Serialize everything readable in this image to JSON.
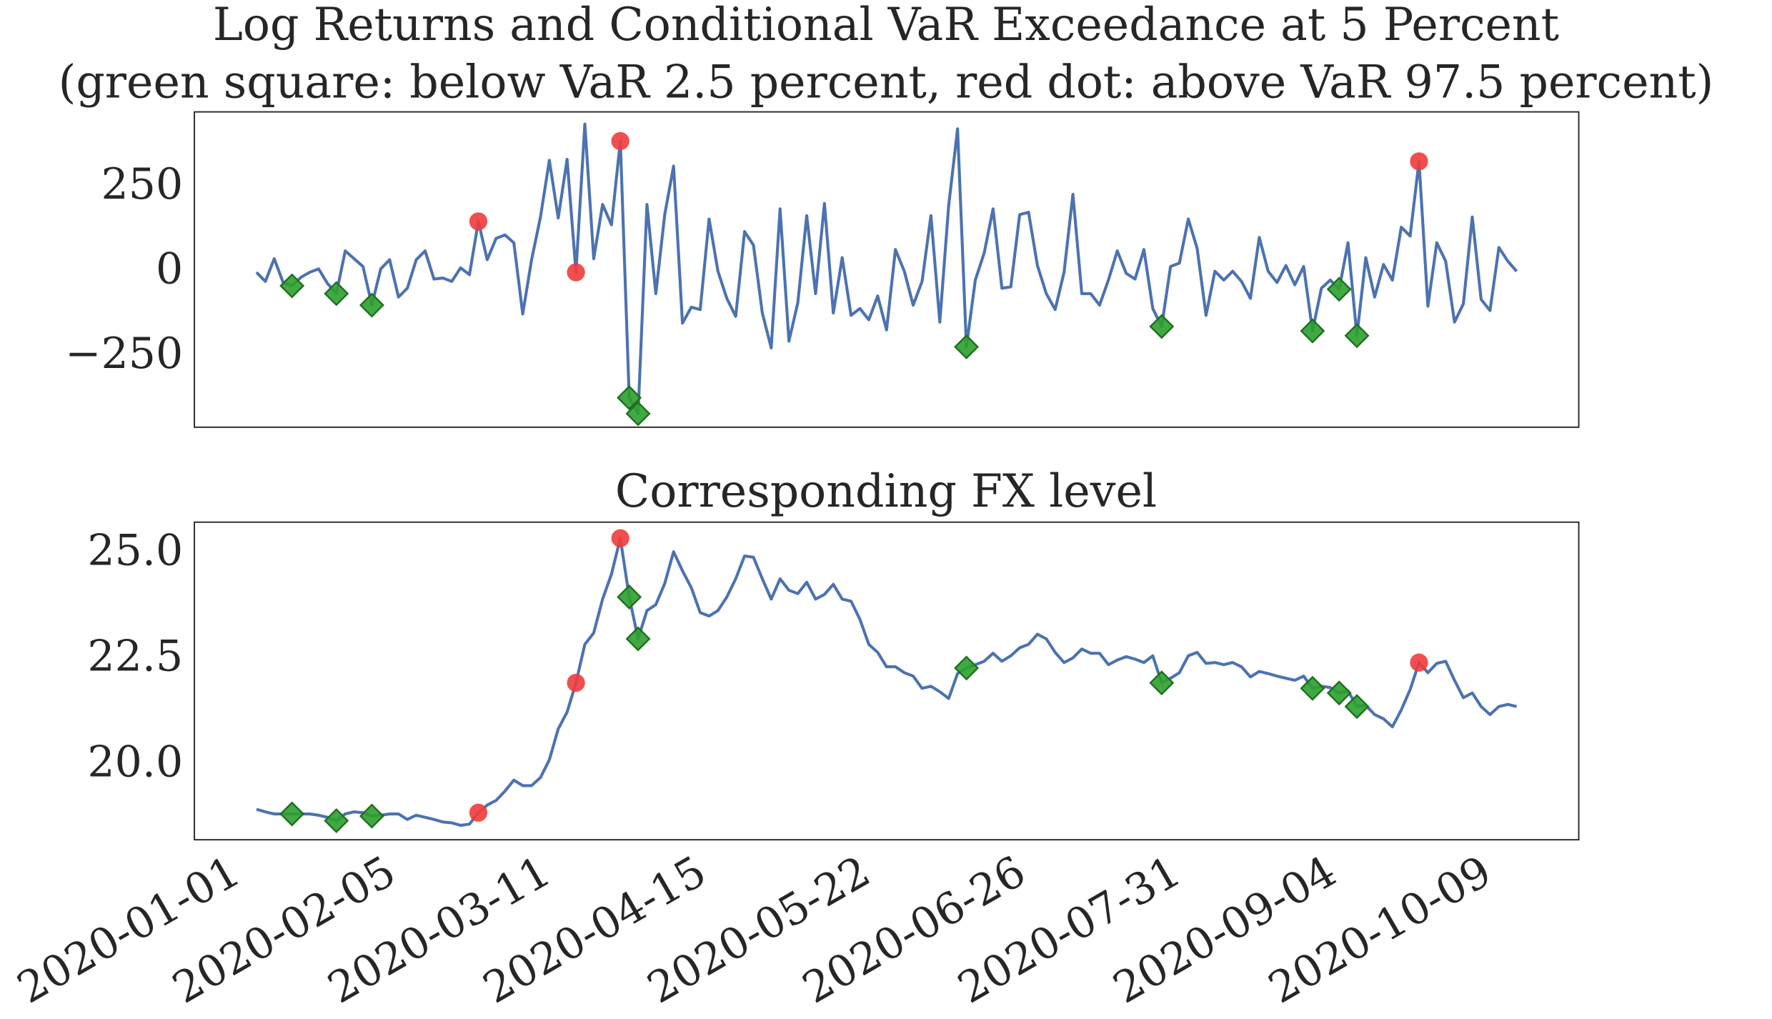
{
  "chart_data": [
    {
      "type": "line",
      "title": "Log Returns and Conditional VaR Exceedance at 5 Percent",
      "subtitle": "(green square: below VaR 2.5 percent, red dot: above VaR 97.5 percent)",
      "xlim": [
        "2019-12-21",
        "2020-10-28"
      ],
      "ylim": [
        -457,
        473
      ],
      "yticks": [
        {
          "value": -250,
          "label": "−250"
        },
        0,
        250
      ],
      "x": [
        "2020-01-04",
        "2020-01-06",
        "2020-01-08",
        "2020-01-10",
        "2020-01-12",
        "2020-01-14",
        "2020-01-16",
        "2020-01-18",
        "2020-01-20",
        "2020-01-22",
        "2020-01-24",
        "2020-01-26",
        "2020-01-28",
        "2020-01-30",
        "2020-02-01",
        "2020-02-03",
        "2020-02-05",
        "2020-02-07",
        "2020-02-09",
        "2020-02-11",
        "2020-02-13",
        "2020-02-15",
        "2020-02-17",
        "2020-02-19",
        "2020-02-21",
        "2020-02-23",
        "2020-02-25",
        "2020-02-27",
        "2020-02-29",
        "2020-03-02",
        "2020-03-04",
        "2020-03-06",
        "2020-03-08",
        "2020-03-10",
        "2020-03-12",
        "2020-03-14",
        "2020-03-16",
        "2020-03-18",
        "2020-03-20",
        "2020-03-22",
        "2020-03-24",
        "2020-03-26",
        "2020-03-28",
        "2020-03-30",
        "2020-04-01",
        "2020-04-03",
        "2020-04-05",
        "2020-04-07",
        "2020-04-09",
        "2020-04-11",
        "2020-04-13",
        "2020-04-15",
        "2020-04-17",
        "2020-04-19",
        "2020-04-21",
        "2020-04-23",
        "2020-04-25",
        "2020-04-27",
        "2020-04-29",
        "2020-05-01",
        "2020-05-03",
        "2020-05-05",
        "2020-05-07",
        "2020-05-09",
        "2020-05-11",
        "2020-05-13",
        "2020-05-15",
        "2020-05-17",
        "2020-05-19",
        "2020-05-21",
        "2020-05-23",
        "2020-05-25",
        "2020-05-27",
        "2020-05-29",
        "2020-05-31",
        "2020-06-02",
        "2020-06-04",
        "2020-06-06",
        "2020-06-08",
        "2020-06-10",
        "2020-06-12",
        "2020-06-14",
        "2020-06-16",
        "2020-06-18",
        "2020-06-20",
        "2020-06-22",
        "2020-06-24",
        "2020-06-26",
        "2020-06-28",
        "2020-06-30",
        "2020-07-02",
        "2020-07-04",
        "2020-07-06",
        "2020-07-08",
        "2020-07-10",
        "2020-07-12",
        "2020-07-14",
        "2020-07-16",
        "2020-07-18",
        "2020-07-20",
        "2020-07-22",
        "2020-07-24",
        "2020-07-26",
        "2020-07-28",
        "2020-07-30",
        "2020-08-01",
        "2020-08-03",
        "2020-08-05",
        "2020-08-07",
        "2020-08-09",
        "2020-08-11",
        "2020-08-13",
        "2020-08-15",
        "2020-08-17",
        "2020-08-19",
        "2020-08-21",
        "2020-08-23",
        "2020-08-25",
        "2020-08-27",
        "2020-08-29",
        "2020-08-31",
        "2020-09-02",
        "2020-09-04",
        "2020-09-06",
        "2020-09-08",
        "2020-09-10",
        "2020-09-12",
        "2020-09-14",
        "2020-09-16",
        "2020-09-18",
        "2020-09-20",
        "2020-09-22",
        "2020-09-24",
        "2020-09-26",
        "2020-09-28",
        "2020-09-30",
        "2020-10-02",
        "2020-10-04",
        "2020-10-06",
        "2020-10-08",
        "2020-10-10",
        "2020-10-12",
        "2020-10-14"
      ],
      "series": [
        {
          "color": "#4c72b0",
          "values": [
            0,
            -27,
            40,
            -30,
            -40,
            -15,
            0,
            10,
            -33,
            -63,
            63,
            40,
            17,
            -97,
            10,
            37,
            -73,
            -47,
            37,
            63,
            -20,
            -17,
            -27,
            13,
            -7,
            150,
            37,
            100,
            110,
            87,
            -123,
            37,
            163,
            330,
            160,
            333,
            0,
            437,
            40,
            200,
            140,
            387,
            -370,
            -417,
            200,
            -63,
            170,
            313,
            -150,
            -103,
            -110,
            157,
            3,
            -77,
            -130,
            120,
            80,
            -120,
            -223,
            187,
            -203,
            -90,
            167,
            -63,
            203,
            -120,
            43,
            -127,
            -107,
            -140,
            -70,
            -170,
            67,
            3,
            -97,
            -27,
            167,
            -147,
            197,
            423,
            -220,
            -23,
            57,
            187,
            -47,
            -43,
            170,
            177,
            20,
            -63,
            -110,
            0,
            230,
            -63,
            -63,
            -97,
            -23,
            63,
            -3,
            -20,
            67,
            -107,
            -160,
            17,
            27,
            157,
            70,
            -127,
            3,
            -23,
            3,
            -27,
            -77,
            103,
            3,
            -30,
            20,
            -37,
            17,
            -173,
            -47,
            -23,
            -50,
            87,
            -187,
            43,
            -73,
            23,
            -23,
            133,
            107,
            327,
            -100,
            87,
            33,
            -147,
            -93,
            163,
            -80,
            -113,
            73,
            33,
            3
          ]
        },
        {
          "marker": "diamond",
          "color": "#2ca02c",
          "edgecolor": "#1f6e1f",
          "x": [
            "2020-01-12",
            "2020-01-22",
            "2020-01-30",
            "2020-03-28",
            "2020-03-30",
            "2020-06-12",
            "2020-07-26",
            "2020-08-29",
            "2020-09-04",
            "2020-09-08"
          ],
          "values": [
            -40,
            -63,
            -97,
            -370,
            -417,
            -220,
            -160,
            -173,
            -50,
            -187
          ]
        },
        {
          "marker": "circle",
          "color": "#f03c3c",
          "x": [
            "2020-02-23",
            "2020-03-16",
            "2020-03-26",
            "2020-09-22"
          ],
          "values": [
            150,
            0,
            387,
            327
          ]
        }
      ]
    },
    {
      "type": "line",
      "title": "Corresponding FX level",
      "xlim": [
        "2019-12-21",
        "2020-10-28"
      ],
      "ylim": [
        18.24,
        25.75
      ],
      "yticks": [
        {
          "value": 20,
          "label": "20.0"
        },
        22.5,
        {
          "value": 25,
          "label": "25.0"
        }
      ],
      "xticks": [
        "2020-01-01",
        "2020-02-05",
        "2020-03-11",
        "2020-04-15",
        "2020-05-22",
        "2020-06-26",
        "2020-07-31",
        "2020-09-04",
        "2020-10-09"
      ],
      "x": [
        "2020-01-04",
        "2020-01-06",
        "2020-01-08",
        "2020-01-10",
        "2020-01-12",
        "2020-01-14",
        "2020-01-16",
        "2020-01-18",
        "2020-01-20",
        "2020-01-22",
        "2020-01-24",
        "2020-01-26",
        "2020-01-28",
        "2020-01-30",
        "2020-02-01",
        "2020-02-03",
        "2020-02-05",
        "2020-02-07",
        "2020-02-09",
        "2020-02-11",
        "2020-02-13",
        "2020-02-15",
        "2020-02-17",
        "2020-02-19",
        "2020-02-21",
        "2020-02-23",
        "2020-02-25",
        "2020-02-27",
        "2020-02-29",
        "2020-03-02",
        "2020-03-04",
        "2020-03-06",
        "2020-03-08",
        "2020-03-10",
        "2020-03-12",
        "2020-03-14",
        "2020-03-16",
        "2020-03-18",
        "2020-03-20",
        "2020-03-22",
        "2020-03-24",
        "2020-03-26",
        "2020-03-28",
        "2020-03-30",
        "2020-04-01",
        "2020-04-03",
        "2020-04-05",
        "2020-04-07",
        "2020-04-09",
        "2020-04-11",
        "2020-04-13",
        "2020-04-15",
        "2020-04-17",
        "2020-04-19",
        "2020-04-21",
        "2020-04-23",
        "2020-04-25",
        "2020-04-27",
        "2020-04-29",
        "2020-05-01",
        "2020-05-03",
        "2020-05-05",
        "2020-05-07",
        "2020-05-09",
        "2020-05-11",
        "2020-05-13",
        "2020-05-15",
        "2020-05-17",
        "2020-05-19",
        "2020-05-21",
        "2020-05-23",
        "2020-05-25",
        "2020-05-27",
        "2020-05-29",
        "2020-05-31",
        "2020-06-02",
        "2020-06-04",
        "2020-06-06",
        "2020-06-08",
        "2020-06-10",
        "2020-06-12",
        "2020-06-14",
        "2020-06-16",
        "2020-06-18",
        "2020-06-20",
        "2020-06-22",
        "2020-06-24",
        "2020-06-26",
        "2020-06-28",
        "2020-06-30",
        "2020-07-02",
        "2020-07-04",
        "2020-07-06",
        "2020-07-08",
        "2020-07-10",
        "2020-07-12",
        "2020-07-14",
        "2020-07-16",
        "2020-07-18",
        "2020-07-20",
        "2020-07-22",
        "2020-07-24",
        "2020-07-26",
        "2020-07-28",
        "2020-07-30",
        "2020-08-01",
        "2020-08-03",
        "2020-08-05",
        "2020-08-07",
        "2020-08-09",
        "2020-08-11",
        "2020-08-13",
        "2020-08-15",
        "2020-08-17",
        "2020-08-19",
        "2020-08-21",
        "2020-08-23",
        "2020-08-25",
        "2020-08-27",
        "2020-08-29",
        "2020-08-31",
        "2020-09-02",
        "2020-09-04",
        "2020-09-06",
        "2020-09-08",
        "2020-09-10",
        "2020-09-12",
        "2020-09-14",
        "2020-09-16",
        "2020-09-18",
        "2020-09-20",
        "2020-09-22",
        "2020-09-24",
        "2020-09-26",
        "2020-09-28",
        "2020-09-30",
        "2020-10-02",
        "2020-10-04",
        "2020-10-06",
        "2020-10-08",
        "2020-10-10",
        "2020-10-12",
        "2020-10-14"
      ],
      "series": [
        {
          "color": "#4c72b0",
          "values": [
            18.96,
            18.9,
            18.85,
            18.85,
            18.85,
            18.85,
            18.85,
            18.82,
            18.77,
            18.69,
            18.85,
            18.9,
            18.88,
            18.8,
            18.82,
            18.85,
            18.85,
            18.72,
            18.82,
            18.77,
            18.72,
            18.66,
            18.64,
            18.58,
            18.61,
            18.88,
            19.06,
            19.17,
            19.39,
            19.65,
            19.52,
            19.52,
            19.71,
            20.13,
            20.86,
            21.26,
            21.95,
            22.86,
            23.13,
            23.93,
            24.52,
            25.37,
            23.98,
            22.99,
            23.66,
            23.8,
            24.3,
            25.05,
            24.6,
            24.2,
            23.61,
            23.53,
            23.66,
            23.98,
            24.41,
            24.95,
            24.92,
            24.41,
            23.93,
            24.41,
            24.14,
            24.06,
            24.33,
            23.93,
            24.04,
            24.28,
            23.93,
            23.88,
            23.45,
            22.86,
            22.67,
            22.33,
            22.33,
            22.19,
            22.11,
            21.82,
            21.87,
            21.74,
            21.58,
            22.17,
            22.3,
            22.38,
            22.46,
            22.65,
            22.46,
            22.59,
            22.78,
            22.86,
            23.1,
            22.99,
            22.67,
            22.43,
            22.54,
            22.75,
            22.65,
            22.65,
            22.38,
            22.49,
            22.57,
            22.51,
            22.43,
            22.59,
            21.95,
            22.06,
            22.19,
            22.59,
            22.67,
            22.41,
            22.43,
            22.38,
            22.43,
            22.33,
            22.09,
            22.22,
            22.17,
            22.11,
            22.06,
            22.01,
            22.11,
            21.82,
            21.87,
            21.84,
            21.71,
            21.76,
            21.39,
            21.42,
            21.2,
            21.1,
            20.91,
            21.31,
            21.79,
            22.43,
            22.19,
            22.41,
            22.46,
            22.01,
            21.6,
            21.71,
            21.39,
            21.2,
            21.39,
            21.44,
            21.39
          ]
        },
        {
          "marker": "diamond",
          "color": "#2ca02c",
          "edgecolor": "#1f6e1f",
          "x": [
            "2020-01-12",
            "2020-01-22",
            "2020-01-30",
            "2020-03-28",
            "2020-03-30",
            "2020-06-12",
            "2020-07-26",
            "2020-08-29",
            "2020-09-04",
            "2020-09-08"
          ],
          "values": [
            18.85,
            18.69,
            18.8,
            23.98,
            22.99,
            22.3,
            21.95,
            21.82,
            21.71,
            21.39
          ]
        },
        {
          "marker": "circle",
          "color": "#f03c3c",
          "x": [
            "2020-02-23",
            "2020-03-16",
            "2020-03-26",
            "2020-09-22"
          ],
          "values": [
            18.88,
            21.95,
            25.37,
            22.43
          ]
        }
      ]
    }
  ]
}
